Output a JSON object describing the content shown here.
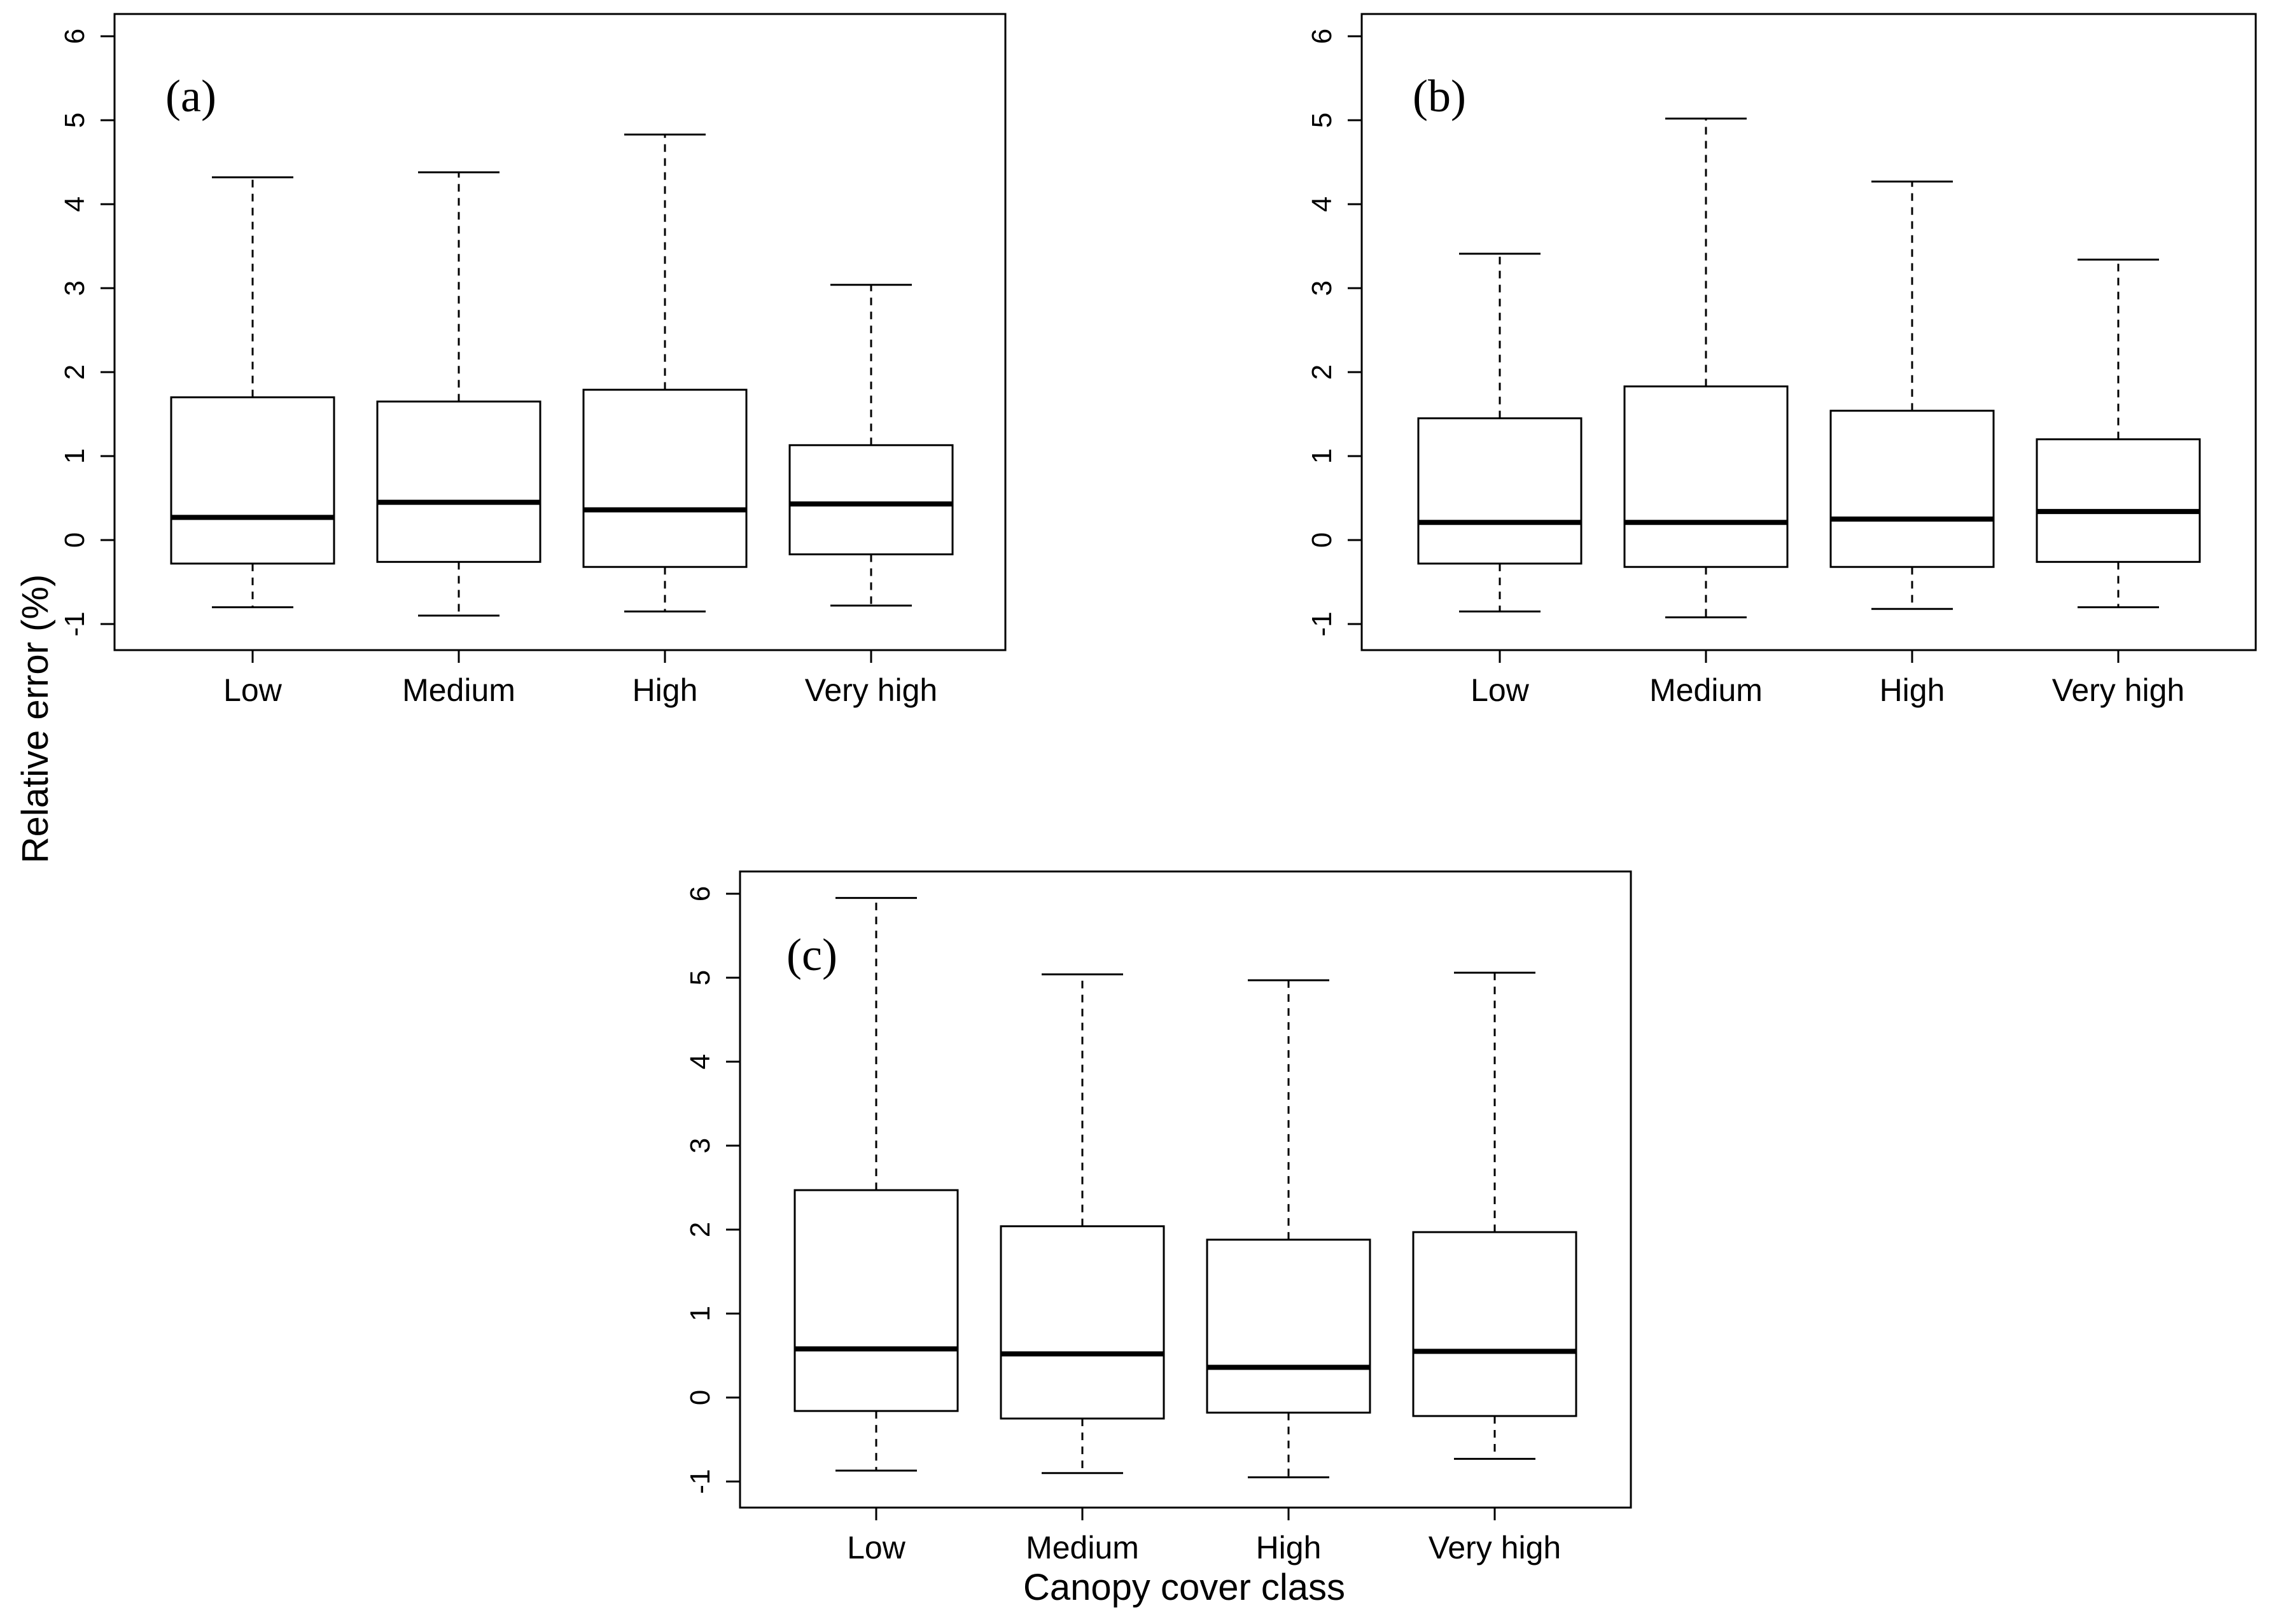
{
  "chart_data": [
    {
      "type": "boxplot",
      "panel_label": "(a)",
      "categories": [
        "Low",
        "Medium",
        "High",
        "Very high"
      ],
      "ylim": [
        -1.2,
        6.4
      ],
      "yticks": [
        "-1",
        "0",
        "1",
        "2",
        "3",
        "4",
        "5",
        "6"
      ],
      "boxes": [
        {
          "category": "Low",
          "min": -0.8,
          "q1": -0.28,
          "median": 0.27,
          "q3": 1.7,
          "max": 4.32
        },
        {
          "category": "Medium",
          "min": -0.9,
          "q1": -0.26,
          "median": 0.45,
          "q3": 1.65,
          "max": 4.38
        },
        {
          "category": "High",
          "min": -0.85,
          "q1": -0.32,
          "median": 0.36,
          "q3": 1.79,
          "max": 4.83
        },
        {
          "category": "Very high",
          "min": -0.78,
          "q1": -0.17,
          "median": 0.43,
          "q3": 1.13,
          "max": 3.04
        }
      ]
    },
    {
      "type": "boxplot",
      "panel_label": "(b)",
      "categories": [
        "Low",
        "Medium",
        "High",
        "Very high"
      ],
      "ylim": [
        -1.2,
        6.4
      ],
      "yticks": [
        "-1",
        "0",
        "1",
        "2",
        "3",
        "4",
        "5",
        "6"
      ],
      "boxes": [
        {
          "category": "Low",
          "min": -0.85,
          "q1": -0.28,
          "median": 0.21,
          "q3": 1.45,
          "max": 3.41
        },
        {
          "category": "Medium",
          "min": -0.92,
          "q1": -0.32,
          "median": 0.21,
          "q3": 1.83,
          "max": 5.02
        },
        {
          "category": "High",
          "min": -0.82,
          "q1": -0.32,
          "median": 0.25,
          "q3": 1.54,
          "max": 4.27
        },
        {
          "category": "Very high",
          "min": -0.8,
          "q1": -0.26,
          "median": 0.34,
          "q3": 1.2,
          "max": 3.34
        }
      ]
    },
    {
      "type": "boxplot",
      "panel_label": "(c)",
      "categories": [
        "Low",
        "Medium",
        "High",
        "Very high"
      ],
      "ylim": [
        -1.2,
        6.4
      ],
      "yticks": [
        "-1",
        "0",
        "1",
        "2",
        "3",
        "4",
        "5",
        "6"
      ],
      "boxes": [
        {
          "category": "Low",
          "min": -0.87,
          "q1": -0.16,
          "median": 0.58,
          "q3": 2.47,
          "max": 5.95
        },
        {
          "category": "Medium",
          "min": -0.9,
          "q1": -0.25,
          "median": 0.52,
          "q3": 2.04,
          "max": 5.04
        },
        {
          "category": "High",
          "min": -0.95,
          "q1": -0.18,
          "median": 0.36,
          "q3": 1.88,
          "max": 4.97
        },
        {
          "category": "Very high",
          "min": -0.73,
          "q1": -0.22,
          "median": 0.55,
          "q3": 1.97,
          "max": 5.06
        }
      ]
    }
  ],
  "ylabel": "Relative error (%)",
  "xlabel": "Canopy cover class"
}
